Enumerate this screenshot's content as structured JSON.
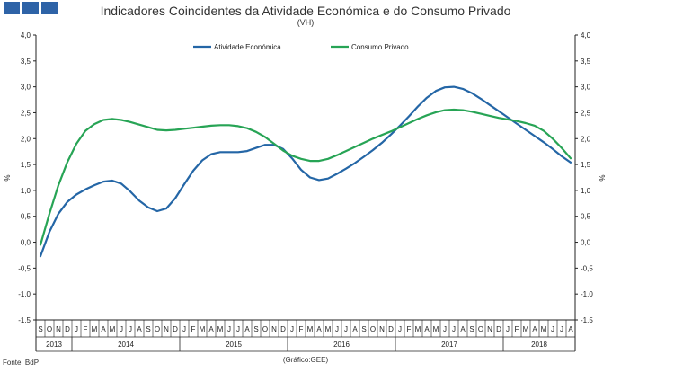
{
  "header": {
    "title": "Indicadores Coincidentes da Atividade Económica e do Consumo Privado",
    "subtitle": "(VH)"
  },
  "footer": {
    "source": "Fonte: BdP",
    "credit": "(Gráfico:GEE)"
  },
  "chart_data": {
    "type": "line",
    "y_unit_left": "%",
    "y_unit_right": "%",
    "ylim": [
      -1.5,
      4.0
    ],
    "ytick_labels": [
      "4,0",
      "3,5",
      "3,0",
      "2,5",
      "2,0",
      "1,5",
      "1,0",
      "0,5",
      "0,0",
      "-0,5",
      "-1,0",
      "-1,5"
    ],
    "month_labels": [
      "S",
      "O",
      "N",
      "D",
      "J",
      "F",
      "M",
      "A",
      "M",
      "J",
      "J",
      "A",
      "S",
      "O",
      "N",
      "D",
      "J",
      "F",
      "M",
      "A",
      "M",
      "J",
      "J",
      "A",
      "S",
      "O",
      "N",
      "D",
      "J",
      "F",
      "M",
      "A",
      "M",
      "J",
      "J",
      "A",
      "S",
      "O",
      "N",
      "D",
      "J",
      "F",
      "M",
      "A",
      "M",
      "J",
      "J",
      "A",
      "S",
      "O",
      "N",
      "D",
      "J",
      "F",
      "M",
      "A",
      "M",
      "J",
      "J",
      "A"
    ],
    "year_labels": [
      "2013",
      "2014",
      "2015",
      "2016",
      "2017",
      "2018"
    ],
    "series": [
      {
        "name": "Atividade Económica",
        "color": "#2466a6",
        "values": [
          -0.27,
          0.2,
          0.55,
          0.78,
          0.92,
          1.02,
          1.1,
          1.17,
          1.19,
          1.13,
          0.98,
          0.8,
          0.67,
          0.6,
          0.65,
          0.85,
          1.12,
          1.38,
          1.58,
          1.7,
          1.74,
          1.74,
          1.74,
          1.76,
          1.82,
          1.88,
          1.88,
          1.8,
          1.62,
          1.4,
          1.25,
          1.2,
          1.23,
          1.32,
          1.42,
          1.53,
          1.65,
          1.78,
          1.92,
          2.08,
          2.25,
          2.43,
          2.62,
          2.79,
          2.92,
          2.99,
          3.0,
          2.96,
          2.88,
          2.77,
          2.65,
          2.53,
          2.41,
          2.29,
          2.17,
          2.05,
          1.93,
          1.8,
          1.66,
          1.54
        ]
      },
      {
        "name": "Consumo Privado",
        "color": "#27a455",
        "values": [
          -0.05,
          0.55,
          1.1,
          1.55,
          1.9,
          2.15,
          2.28,
          2.36,
          2.38,
          2.36,
          2.32,
          2.27,
          2.22,
          2.17,
          2.16,
          2.17,
          2.19,
          2.21,
          2.23,
          2.25,
          2.26,
          2.26,
          2.24,
          2.2,
          2.13,
          2.03,
          1.9,
          1.77,
          1.67,
          1.61,
          1.57,
          1.57,
          1.61,
          1.68,
          1.76,
          1.84,
          1.92,
          2.0,
          2.07,
          2.14,
          2.22,
          2.3,
          2.38,
          2.45,
          2.51,
          2.55,
          2.56,
          2.55,
          2.52,
          2.48,
          2.44,
          2.4,
          2.37,
          2.34,
          2.3,
          2.25,
          2.15,
          2.0,
          1.82,
          1.62
        ]
      }
    ]
  }
}
